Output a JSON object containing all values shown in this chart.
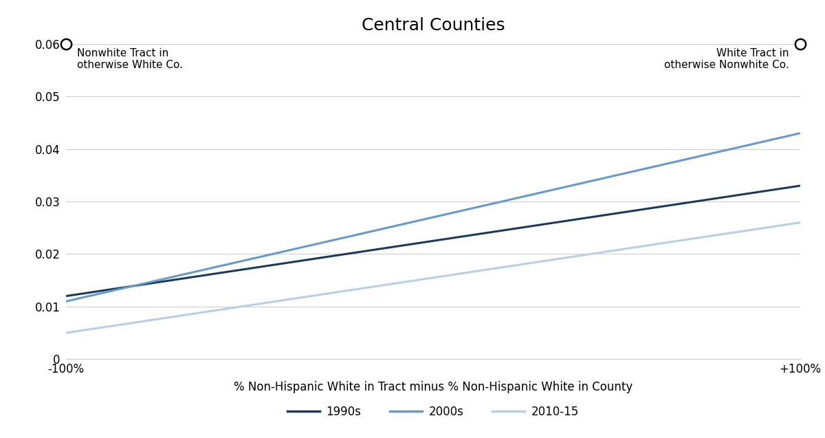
{
  "title": "Central Counties",
  "lines": [
    {
      "label": "1990s",
      "x": [
        -100,
        100
      ],
      "y": [
        0.012,
        0.033
      ],
      "color": "#1a3a5c",
      "linewidth": 2.2
    },
    {
      "label": "2000s",
      "x": [
        -100,
        100
      ],
      "y": [
        0.011,
        0.043
      ],
      "color": "#6699cc",
      "linewidth": 2.2
    },
    {
      "label": "2010-15",
      "x": [
        -100,
        100
      ],
      "y": [
        0.005,
        0.026
      ],
      "color": "#b8cfe8",
      "linewidth": 2.2
    }
  ],
  "xlim": [
    -100,
    100
  ],
  "ylim": [
    0,
    0.06
  ],
  "yticks": [
    0,
    0.01,
    0.02,
    0.03,
    0.04,
    0.05,
    0.06
  ],
  "ytick_labels": [
    "0",
    "0.01",
    "0.02",
    "0.03",
    "0.04",
    "0.05",
    "0.06"
  ],
  "xlabel": "% Non-Hispanic White in Tract minus % Non-Hispanic White in County",
  "xtick_left_label": "-100%",
  "xtick_right_label": "+100%",
  "annotation_left_text": "Nonwhite Tract in\notherwise White Co.",
  "annotation_right_text": "White Tract in\notherwise Nonwhite Co.",
  "circle_color": "#000000",
  "background_color": "#ffffff",
  "grid_color": "#cccccc",
  "title_fontsize": 18,
  "label_fontsize": 12,
  "tick_fontsize": 12,
  "legend_fontsize": 12,
  "annotation_fontsize": 11
}
